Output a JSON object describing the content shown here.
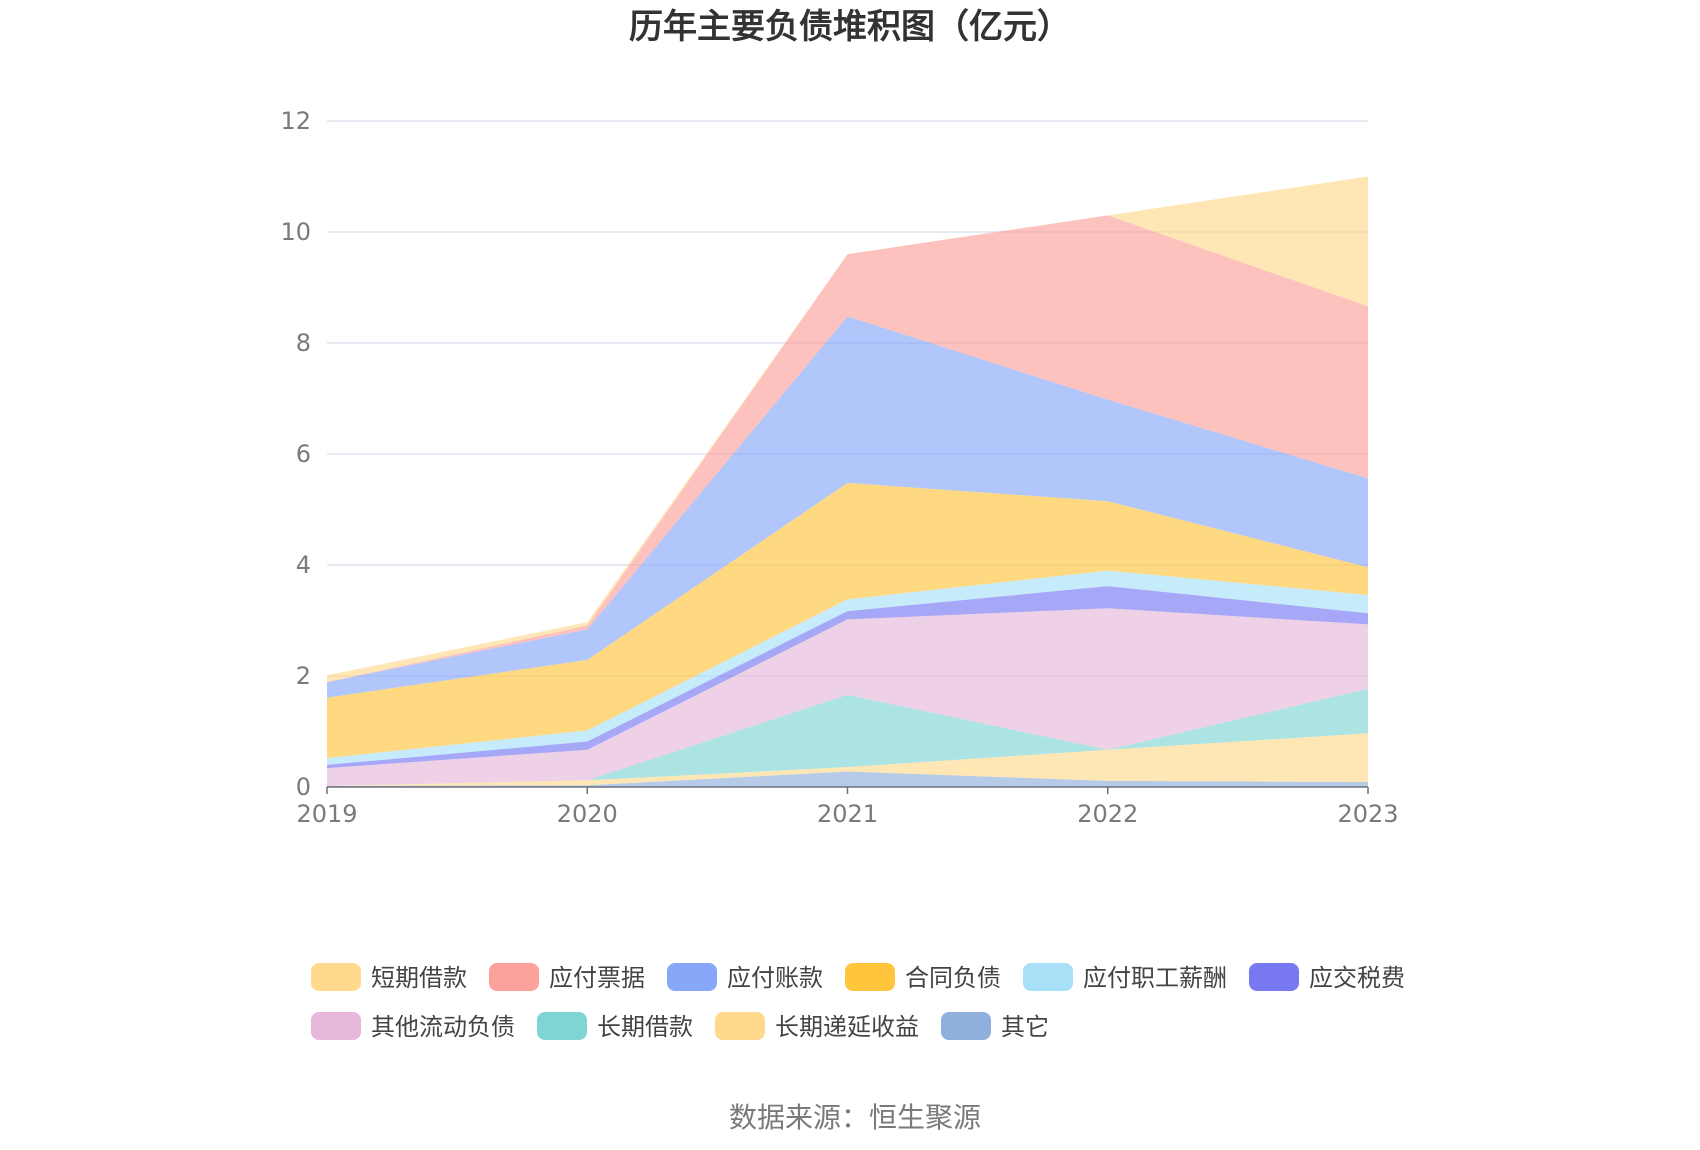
{
  "source_text": "数据来源：恒生聚源",
  "chart_data": {
    "type": "area",
    "stacked": true,
    "title": "历年主要负债堆积图（亿元）",
    "xlabel": "",
    "ylabel": "",
    "x": [
      "2019",
      "2020",
      "2021",
      "2022",
      "2023"
    ],
    "ylim": [
      0,
      12
    ],
    "yticks": [
      0,
      2,
      4,
      6,
      8,
      10,
      12
    ],
    "grid": true,
    "legend_position": "bottom",
    "series": [
      {
        "name": "其它",
        "color": "#8fafdc",
        "values": [
          0.02,
          0.03,
          0.28,
          0.11,
          0.09
        ]
      },
      {
        "name": "长期递延收益",
        "color": "#ffd98e",
        "values": [
          0.0,
          0.09,
          0.08,
          0.56,
          0.88
        ]
      },
      {
        "name": "长期借款",
        "color": "#7fd4d4",
        "values": [
          0.0,
          0.0,
          1.3,
          0.0,
          0.8
        ]
      },
      {
        "name": "其他流动负债",
        "color": "#e7b8da",
        "values": [
          0.32,
          0.55,
          1.36,
          2.55,
          1.16
        ]
      },
      {
        "name": "应交税费",
        "color": "#7878f2",
        "values": [
          0.06,
          0.15,
          0.15,
          0.4,
          0.2
        ]
      },
      {
        "name": "应付职工薪酬",
        "color": "#a8e0f7",
        "values": [
          0.12,
          0.2,
          0.21,
          0.28,
          0.33
        ]
      },
      {
        "name": "合同负债",
        "color": "#ffc53d",
        "values": [
          1.09,
          1.27,
          2.1,
          1.25,
          0.5
        ]
      },
      {
        "name": "应付账款",
        "color": "#87a7f8",
        "values": [
          0.28,
          0.55,
          3.0,
          1.83,
          1.6
        ]
      },
      {
        "name": "应付票据",
        "color": "#fca29a",
        "values": [
          0.0,
          0.07,
          1.12,
          3.32,
          3.1
        ]
      },
      {
        "name": "短期借款",
        "color": "#ffd98e",
        "values": [
          0.12,
          0.06,
          0.0,
          0.0,
          2.34
        ]
      }
    ],
    "legend_order": [
      "短期借款",
      "应付票据",
      "应付账款",
      "合同负债",
      "应付职工薪酬",
      "应交税费",
      "其他流动负债",
      "长期借款",
      "长期递延收益",
      "其它"
    ]
  }
}
